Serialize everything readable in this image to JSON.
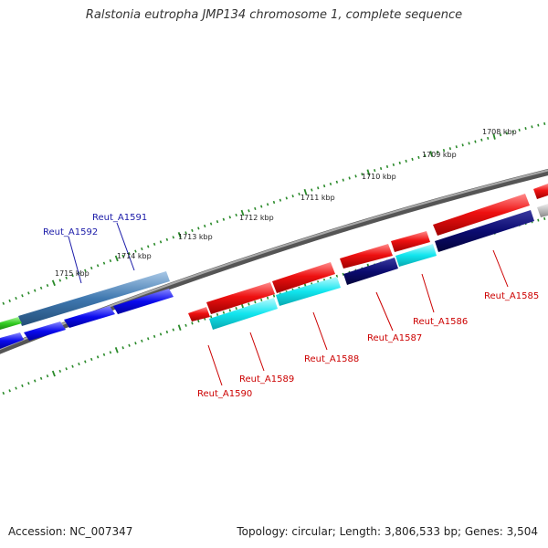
{
  "title": "Ralstonia eutropha JMP134 chromosome 1, complete sequence",
  "footer": {
    "accession": "Accession: NC_007347",
    "summary": "Topology: circular; Length: 3,806,533 bp; Genes: 3,504"
  },
  "colors": {
    "background": "#ffffff",
    "backbone": "#777777",
    "tick": "#2a8a2a",
    "tick_label": "#222222",
    "gene_label_red": "#cc0000",
    "gene_label_blue": "#1a1aa8",
    "red_gene": "#ee1111",
    "cyan_gene": "#11e5ee",
    "navy_gene": "#0b0b70",
    "blue_gene": "#0a0aee",
    "steel_gene": "#3f78b0",
    "green_gene": "#33cc22",
    "grey_gene": "#bbbbbb"
  },
  "ticks": [
    "1708 kbp",
    "1709 kbp",
    "1710 kbp",
    "1711 kbp",
    "1712 kbp",
    "1713 kbp",
    "1714 kbp",
    "1715 kbp"
  ],
  "gene_labels": [
    {
      "text": "Reut_A1585",
      "color": "red"
    },
    {
      "text": "Reut_A1586",
      "color": "red"
    },
    {
      "text": "Reut_A1587",
      "color": "red"
    },
    {
      "text": "Reut_A1588",
      "color": "red"
    },
    {
      "text": "Reut_A1589",
      "color": "red"
    },
    {
      "text": "Reut_A1590",
      "color": "red"
    },
    {
      "text": "Reut_A1591",
      "color": "blue"
    },
    {
      "text": "Reut_A1592",
      "color": "blue"
    }
  ]
}
